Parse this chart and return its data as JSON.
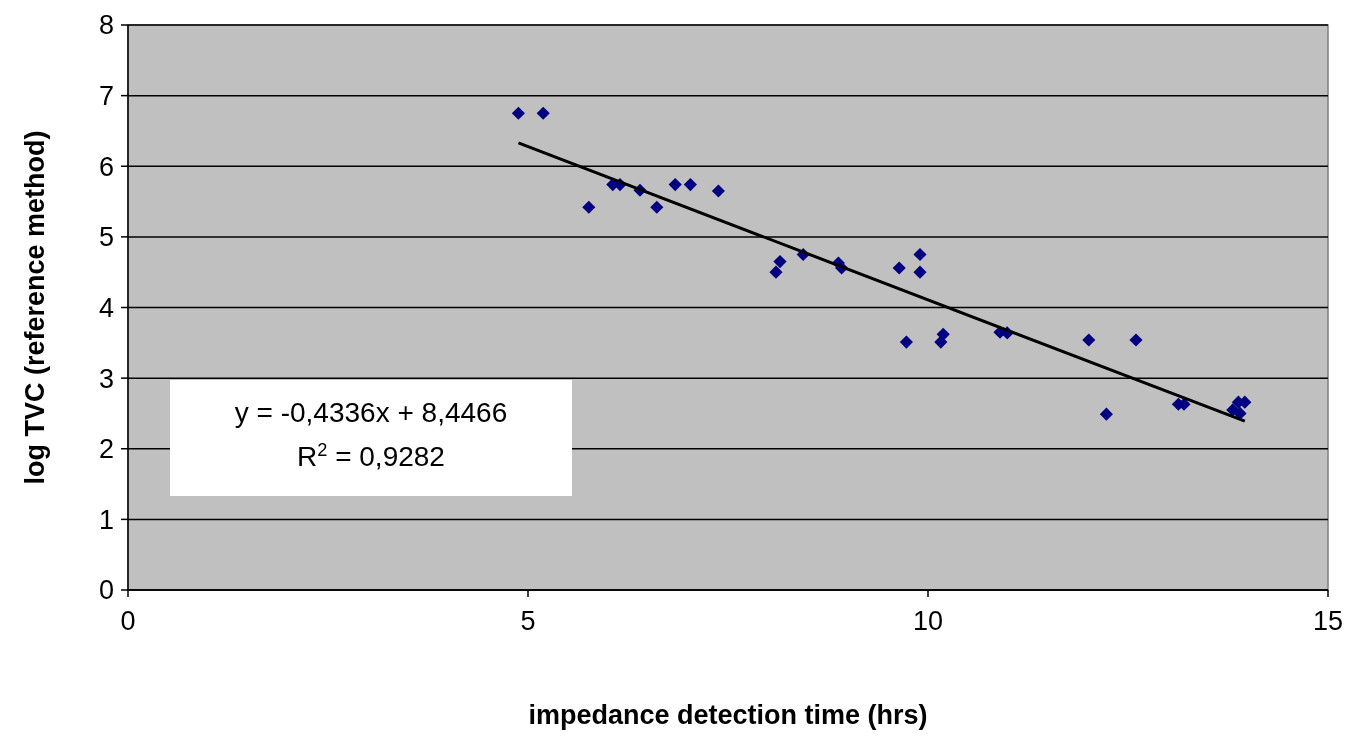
{
  "chart_data": {
    "type": "scatter",
    "xlabel": "impedance detection time (hrs)",
    "ylabel": "log TVC (reference method)",
    "xlim": [
      0,
      15
    ],
    "xticks": [
      0,
      5,
      10,
      15
    ],
    "ylim": [
      0,
      8
    ],
    "yticks": [
      0,
      1,
      2,
      3,
      4,
      5,
      6,
      7,
      8
    ],
    "grid": "y",
    "marker": "diamond",
    "series": [
      {
        "color": "#000080",
        "x": [
          4.88,
          5.19,
          5.76,
          6.06,
          6.15,
          6.4,
          6.61,
          6.84,
          7.03,
          7.38,
          8.1,
          8.15,
          8.44,
          8.88,
          8.92,
          9.64,
          9.9,
          9.9,
          9.73,
          10.16,
          10.19,
          10.9,
          10.99,
          12.01,
          12.6,
          12.23,
          13.13,
          13.2,
          13.81,
          13.88,
          13.96,
          13.9
        ],
        "values": [
          6.75,
          6.75,
          5.42,
          5.74,
          5.74,
          5.66,
          5.42,
          5.74,
          5.74,
          5.65,
          4.5,
          4.65,
          4.75,
          4.63,
          4.56,
          4.56,
          4.75,
          4.5,
          3.51,
          3.51,
          3.62,
          3.65,
          3.64,
          3.54,
          3.54,
          2.49,
          2.63,
          2.63,
          2.55,
          2.66,
          2.66,
          2.5
        ]
      },
      {
        "type": "line",
        "marker": "none",
        "color": "#000000",
        "x": [
          4.88,
          13.96
        ],
        "values": [
          6.33,
          2.39
        ]
      }
    ],
    "annotations": [
      "y = -0,4336x + 8,4466",
      "R$^{2}$ = 0,9282"
    ]
  }
}
